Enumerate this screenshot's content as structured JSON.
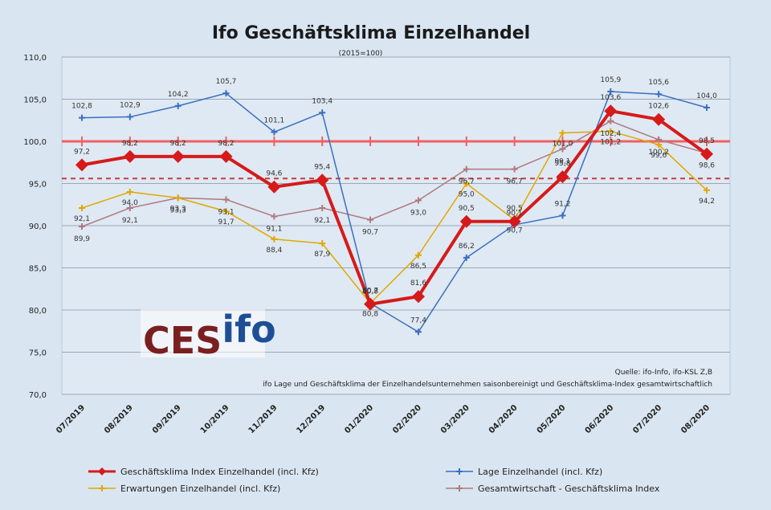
{
  "chart_data": {
    "type": "line",
    "title": "Ifo Geschäftsklima Einzelhandel",
    "subtitle": "(2015=100)",
    "ylim": [
      70,
      110
    ],
    "yticks": [
      "70,0",
      "75,0",
      "80,0",
      "85,0",
      "90,0",
      "95,0",
      "100,0",
      "105,0",
      "110,0"
    ],
    "categories": [
      "07/2019",
      "08/2019",
      "09/2019",
      "10/2019",
      "11/2019",
      "12/2019",
      "01/2020",
      "02/2020",
      "03/2020",
      "04/2020",
      "05/2020",
      "06/2020",
      "07/2020",
      "08/2020"
    ],
    "reference_lines": [
      {
        "value": 100,
        "style": "solid",
        "color": "#f06060"
      },
      {
        "value": 95.6,
        "style": "dashed",
        "color": "#c04040"
      }
    ],
    "series": [
      {
        "name": "Geschäftsklima Index Einzelhandel (incl. Kfz)",
        "color": "#d61a1a",
        "marker": "diamond",
        "width": 4,
        "values": [
          97.2,
          98.2,
          98.2,
          98.2,
          94.6,
          95.4,
          80.7,
          81.6,
          90.5,
          90.5,
          95.8,
          103.6,
          102.6,
          98.5
        ],
        "labels": [
          "97,2",
          "98,2",
          "98,2",
          "98,2",
          "94,6",
          "95,4",
          "80,7",
          "81,6",
          "90,5",
          "90,5",
          "95,8",
          "103,6",
          "102,6",
          "98,5"
        ]
      },
      {
        "name": "Lage Einzelhandel (incl. Kfz)",
        "color": "#3a6fc0",
        "marker": "plus",
        "width": 1.5,
        "values": [
          102.8,
          102.9,
          104.2,
          105.7,
          101.1,
          103.4,
          80.8,
          77.4,
          86.2,
          90.1,
          91.2,
          105.9,
          105.6,
          104.0
        ],
        "labels": [
          "102,8",
          "102,9",
          "104,2",
          "105,7",
          "101,1",
          "103,4",
          "80,8",
          "77,4",
          "86,2",
          "90,1",
          "91,2",
          "105,9",
          "105,6",
          "104,0"
        ]
      },
      {
        "name": "Erwartungen Einzelhandel (incl. Kfz)",
        "color": "#e0a800",
        "marker": "plus",
        "width": 1.5,
        "values": [
          92.1,
          94.0,
          93.3,
          91.7,
          88.4,
          87.9,
          80.8,
          86.5,
          95.0,
          90.7,
          101.0,
          101.2,
          99.6,
          94.2
        ],
        "labels": [
          "92,1",
          "94,0",
          "93,3",
          "91,7",
          "88,4",
          "87,9",
          "80,8",
          "86,5",
          "95,0",
          "90,7",
          "101,0",
          "101,2",
          "99,6",
          "94,2"
        ]
      },
      {
        "name": "Gesamtwirtschaft - Geschäftsklima Index",
        "color": "#b07880",
        "marker": "plus",
        "width": 1.5,
        "values": [
          89.9,
          92.1,
          93.3,
          93.1,
          91.1,
          92.1,
          90.7,
          93.0,
          96.7,
          96.7,
          99.1,
          102.4,
          100.2,
          98.6
        ],
        "labels": [
          "89,9",
          "92,1",
          "93,3",
          "93,1",
          "91,1",
          "92,1",
          "90,7",
          "93,0",
          "96,7",
          "96,7",
          "99,1",
          "102,4",
          "100,2",
          "98,6"
        ]
      }
    ],
    "source_lines": [
      "Quelle: ifo-Info, ifo-KSL Z,B",
      "ifo Lage und Geschäftsklima der Einzelhandelsunternehmen saisonbereinigt und Geschäftsklima-Index gesamtwirtschaftlich"
    ],
    "legend_position": "bottom",
    "grid": true
  },
  "logo": {
    "part1": "CES",
    "part2": "ifo"
  }
}
